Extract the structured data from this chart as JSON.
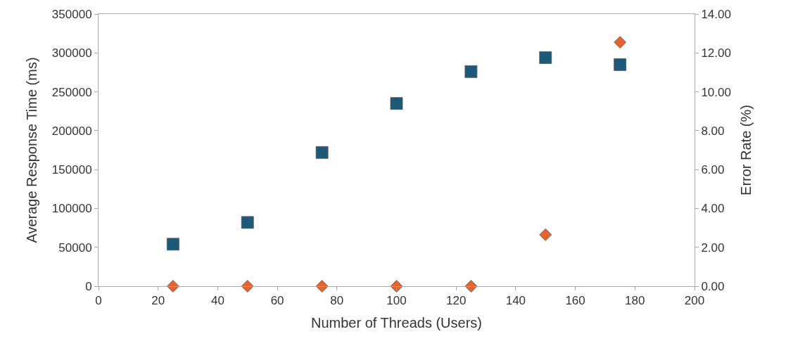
{
  "chart_data": {
    "type": "scatter",
    "xlabel": "Number of Threads (Users)",
    "ylabel": "Average Response Time (ms)",
    "y2label": "Error Rate (%)",
    "x": [
      25,
      50,
      75,
      100,
      125,
      150,
      175
    ],
    "series": [
      {
        "color": "#1b5a7a",
        "marker": "square",
        "values": [
          54000,
          82000,
          172000,
          235000,
          276000,
          294000,
          285000
        ]
      },
      {
        "color": "#e8622a",
        "marker": "diamond",
        "axis": "y2",
        "values": [
          0,
          0,
          0,
          0,
          0,
          2.65,
          12.55
        ]
      }
    ],
    "xlim": [
      0,
      200
    ],
    "xticks": [
      0,
      20,
      40,
      60,
      80,
      100,
      120,
      140,
      160,
      180,
      200
    ],
    "ylim": [
      0,
      350000
    ],
    "yticks": [
      0,
      50000,
      100000,
      150000,
      200000,
      250000,
      300000,
      350000
    ],
    "y2lim": [
      0,
      14
    ],
    "y2ticks": [
      {
        "value": 0,
        "label": "0.00"
      },
      {
        "value": 2,
        "label": "2.00"
      },
      {
        "value": 4,
        "label": "4.00"
      },
      {
        "value": 6,
        "label": "6.00"
      },
      {
        "value": 8,
        "label": "8.00"
      },
      {
        "value": 10,
        "label": "10.00"
      },
      {
        "value": 12,
        "label": "12.00"
      },
      {
        "value": 14,
        "label": "14.00"
      }
    ],
    "legend": false
  }
}
